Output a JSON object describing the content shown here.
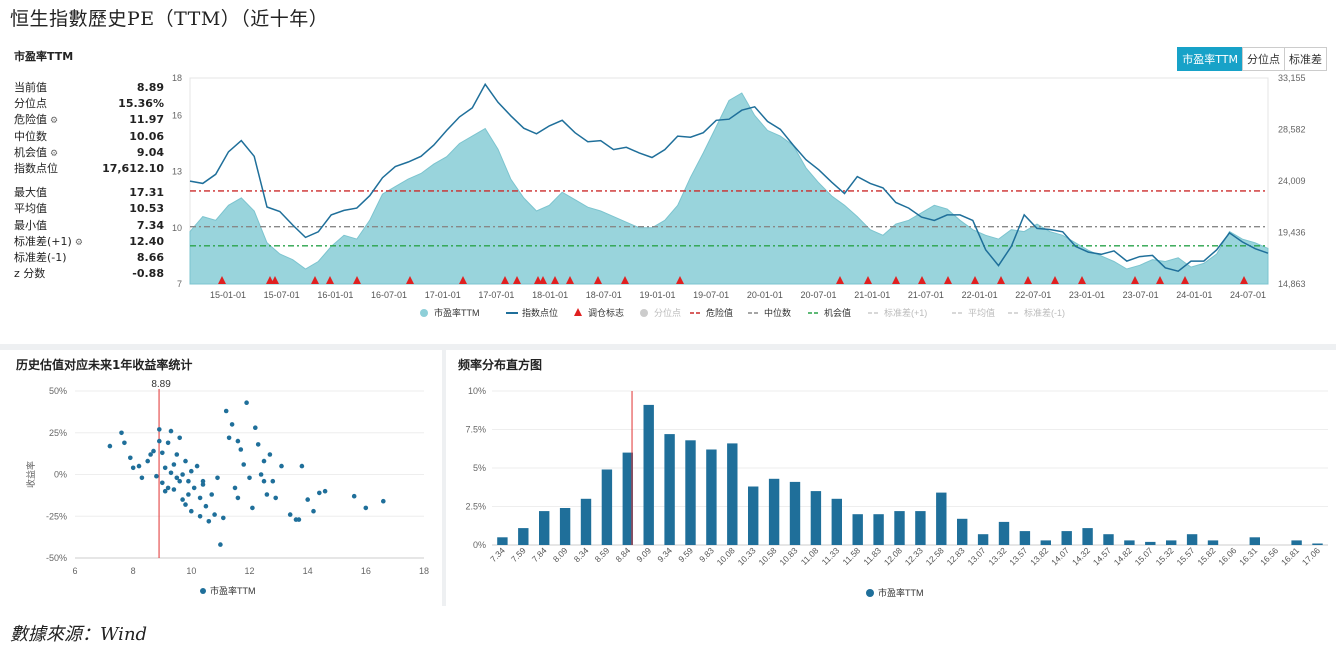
{
  "page_title": "恒生指數歷史PE（TTM）（近十年）",
  "footer": "數據來源：Wind",
  "top": {
    "title": "市盈率TTM",
    "tabs": [
      "市盈率TTM",
      "分位点",
      "标准差"
    ],
    "stats1": [
      {
        "label": "当前值",
        "value": "8.89"
      },
      {
        "label": "分位点",
        "value": "15.36%"
      },
      {
        "label": "危险值",
        "value": "11.97",
        "gear": true
      },
      {
        "label": "中位数",
        "value": "10.06"
      },
      {
        "label": "机会值",
        "value": "9.04",
        "gear": true
      },
      {
        "label": "指数点位",
        "value": "17,612.10"
      }
    ],
    "stats2": [
      {
        "label": "最大值",
        "value": "17.31"
      },
      {
        "label": "平均值",
        "value": "10.53"
      },
      {
        "label": "最小值",
        "value": "7.34"
      },
      {
        "label": "标准差(+1)",
        "value": "12.40",
        "gear": true
      },
      {
        "label": "标准差(-1)",
        "value": "8.66"
      },
      {
        "label": "z 分数",
        "value": "-0.88"
      }
    ]
  },
  "chart_data": [
    {
      "type": "area",
      "x_ticks": [
        "15-01-01",
        "15-07-01",
        "16-01-01",
        "16-07-01",
        "17-01-01",
        "17-07-01",
        "18-01-01",
        "18-07-01",
        "19-01-01",
        "19-07-01",
        "20-01-01",
        "20-07-01",
        "21-01-01",
        "21-07-01",
        "22-01-01",
        "22-07-01",
        "23-01-01",
        "23-07-01",
        "24-01-01",
        "24-07-01"
      ],
      "y_left": {
        "ticks": [
          "7",
          "10",
          "13",
          "16",
          "18"
        ],
        "range": [
          7,
          18
        ]
      },
      "y_right": {
        "ticks": [
          "14,863",
          "19,436",
          "24,009",
          "28,582",
          "33,155"
        ],
        "range": [
          14863,
          33155
        ]
      },
      "series": [
        {
          "name": "市盈率TTM",
          "axis": "left",
          "values": [
            9.8,
            10.6,
            10.4,
            11.2,
            11.6,
            10.9,
            9.2,
            8.6,
            8.3,
            7.8,
            8.2,
            9.0,
            9.6,
            9.4,
            10.4,
            11.8,
            12.2,
            12.6,
            12.9,
            13.4,
            13.8,
            14.5,
            14.9,
            15.3,
            14.2,
            12.6,
            11.6,
            10.9,
            11.2,
            11.9,
            11.5,
            11.1,
            10.9,
            10.6,
            10.3,
            10.0,
            10.0,
            10.4,
            11.2,
            12.7,
            14.0,
            15.4,
            16.8,
            17.2,
            16.0,
            15.2,
            14.9,
            14.4,
            13.2,
            12.4,
            11.7,
            11.2,
            10.6,
            9.9,
            9.6,
            10.2,
            10.4,
            10.8,
            11.2,
            11.0,
            10.4,
            9.9,
            9.6,
            9.4,
            9.9,
            9.8,
            10.2,
            9.8,
            9.6,
            9.2,
            8.8,
            8.5,
            8.2,
            7.8,
            8.0,
            8.3,
            8.2,
            8.4,
            7.9,
            8.1,
            8.6,
            9.8,
            9.4,
            9.2,
            8.9
          ]
        },
        {
          "name": "指数点位",
          "axis": "right",
          "values": [
            24000,
            23800,
            24600,
            26600,
            27600,
            26200,
            21700,
            21300,
            20100,
            19000,
            19500,
            21000,
            21400,
            21600,
            22700,
            24300,
            25300,
            25700,
            26200,
            27200,
            28500,
            29700,
            30500,
            32600,
            31000,
            29800,
            28700,
            28200,
            28900,
            29400,
            28300,
            27500,
            27600,
            26800,
            27000,
            26500,
            26100,
            26800,
            28000,
            27900,
            28300,
            29400,
            29500,
            30300,
            30600,
            29300,
            28600,
            27200,
            25900,
            25000,
            23900,
            22900,
            24400,
            23800,
            23400,
            22100,
            21600,
            20800,
            20500,
            21000,
            21000,
            20500,
            17900,
            16500,
            18200,
            21000,
            19800,
            19700,
            19500,
            18200,
            17700,
            17500,
            17800,
            16900,
            17300,
            17400,
            16300,
            16000,
            16900,
            16900,
            17900,
            19400,
            18600,
            18000,
            17600
          ]
        },
        {
          "name": "调仓标志",
          "type": "marker"
        }
      ],
      "reference_lines": [
        {
          "name": "危险值",
          "value": 11.97,
          "color": "#cc2a2a"
        },
        {
          "name": "中位数",
          "value": 10.06,
          "color": "#888888"
        },
        {
          "name": "机会值",
          "value": 9.04,
          "color": "#2aa34a"
        }
      ],
      "legend": [
        "市盈率TTM",
        "指数点位",
        "调仓标志",
        "分位点",
        "危险值",
        "中位数",
        "机会值",
        "标准差(+1)",
        "平均值",
        "标准差(-1)"
      ],
      "marker_count": 37
    },
    {
      "type": "scatter",
      "title": "历史估值对应未来1年收益率统计",
      "xlabel": "",
      "ylabel": "收益率",
      "xlim": [
        6,
        18
      ],
      "x_ticks": [
        "6",
        "8",
        "10",
        "12",
        "14",
        "16",
        "18"
      ],
      "ylim": [
        -50,
        50
      ],
      "y_ticks": [
        "50%",
        "25%",
        "0%",
        "-25%",
        "-50%"
      ],
      "current_value_label": "8.89",
      "current_value": 8.89,
      "legend": "市盈率TTM",
      "points": [
        [
          7.2,
          17
        ],
        [
          7.6,
          25
        ],
        [
          7.7,
          19
        ],
        [
          7.9,
          10
        ],
        [
          8.0,
          4
        ],
        [
          8.2,
          5
        ],
        [
          8.3,
          -2
        ],
        [
          8.5,
          8
        ],
        [
          8.6,
          12
        ],
        [
          8.7,
          14
        ],
        [
          8.8,
          -1
        ],
        [
          8.9,
          27
        ],
        [
          9.0,
          -5
        ],
        [
          9.0,
          13
        ],
        [
          9.1,
          4
        ],
        [
          9.2,
          -8
        ],
        [
          9.2,
          19
        ],
        [
          9.3,
          26
        ],
        [
          9.3,
          1
        ],
        [
          9.4,
          6
        ],
        [
          9.4,
          -9
        ],
        [
          9.5,
          12
        ],
        [
          9.6,
          -4
        ],
        [
          9.6,
          22
        ],
        [
          9.7,
          0
        ],
        [
          9.7,
          -15
        ],
        [
          9.8,
          8
        ],
        [
          9.8,
          -18
        ],
        [
          9.9,
          -12
        ],
        [
          10.0,
          2
        ],
        [
          10.0,
          -22
        ],
        [
          10.1,
          -8
        ],
        [
          10.2,
          5
        ],
        [
          10.3,
          -14
        ],
        [
          10.3,
          -25
        ],
        [
          10.4,
          -6
        ],
        [
          10.5,
          -19
        ],
        [
          10.6,
          -28
        ],
        [
          10.7,
          -12
        ],
        [
          10.8,
          -24
        ],
        [
          10.9,
          -2
        ],
        [
          11.0,
          -42
        ],
        [
          11.1,
          -26
        ],
        [
          11.2,
          38
        ],
        [
          11.3,
          22
        ],
        [
          11.4,
          30
        ],
        [
          11.5,
          -8
        ],
        [
          11.6,
          -14
        ],
        [
          11.7,
          15
        ],
        [
          11.8,
          6
        ],
        [
          11.9,
          43
        ],
        [
          12.0,
          -2
        ],
        [
          12.1,
          -20
        ],
        [
          12.2,
          28
        ],
        [
          12.3,
          18
        ],
        [
          12.4,
          0
        ],
        [
          12.5,
          8
        ],
        [
          12.6,
          -12
        ],
        [
          12.7,
          12
        ],
        [
          12.8,
          -4
        ],
        [
          12.9,
          -14
        ],
        [
          13.1,
          5
        ],
        [
          13.4,
          -24
        ],
        [
          13.6,
          -27
        ],
        [
          13.7,
          -27
        ],
        [
          13.8,
          5
        ],
        [
          14.0,
          -15
        ],
        [
          14.2,
          -22
        ],
        [
          14.4,
          -11
        ],
        [
          14.6,
          -10
        ],
        [
          15.6,
          -13
        ],
        [
          16.0,
          -20
        ],
        [
          16.6,
          -16
        ],
        [
          8.9,
          20
        ],
        [
          9.5,
          -2
        ],
        [
          10.4,
          -4
        ],
        [
          11.6,
          20
        ],
        [
          12.5,
          -4
        ],
        [
          9.1,
          -10
        ],
        [
          9.9,
          -4
        ]
      ]
    },
    {
      "type": "bar",
      "title": "频率分布直方图",
      "categories": [
        "7.34",
        "7.59",
        "7.84",
        "8.09",
        "8.34",
        "8.59",
        "8.84",
        "9.09",
        "9.34",
        "9.59",
        "9.83",
        "10.08",
        "10.33",
        "10.58",
        "10.83",
        "11.08",
        "11.33",
        "11.58",
        "11.83",
        "12.08",
        "12.33",
        "12.58",
        "12.83",
        "13.07",
        "13.32",
        "13.57",
        "13.82",
        "14.07",
        "14.32",
        "14.57",
        "14.82",
        "15.07",
        "15.32",
        "15.57",
        "15.82",
        "16.06",
        "16.31",
        "16.56",
        "16.81",
        "17.06"
      ],
      "values": [
        0.5,
        1.1,
        2.2,
        2.4,
        3.0,
        4.9,
        6.0,
        9.1,
        7.2,
        6.8,
        6.2,
        6.6,
        3.8,
        4.3,
        4.1,
        3.5,
        3.0,
        2.0,
        2.0,
        2.2,
        2.2,
        3.4,
        1.7,
        0.7,
        1.5,
        0.9,
        0.3,
        0.9,
        1.1,
        0.7,
        0.3,
        0.2,
        0.3,
        0.7,
        0.3,
        0.0,
        0.5,
        0.0,
        0.3,
        0.1
      ],
      "ylim": [
        0,
        10
      ],
      "y_ticks": [
        "0%",
        "2.5%",
        "5%",
        "7.5%",
        "10%"
      ],
      "current_value": 8.89,
      "legend": "市盈率TTM"
    }
  ]
}
